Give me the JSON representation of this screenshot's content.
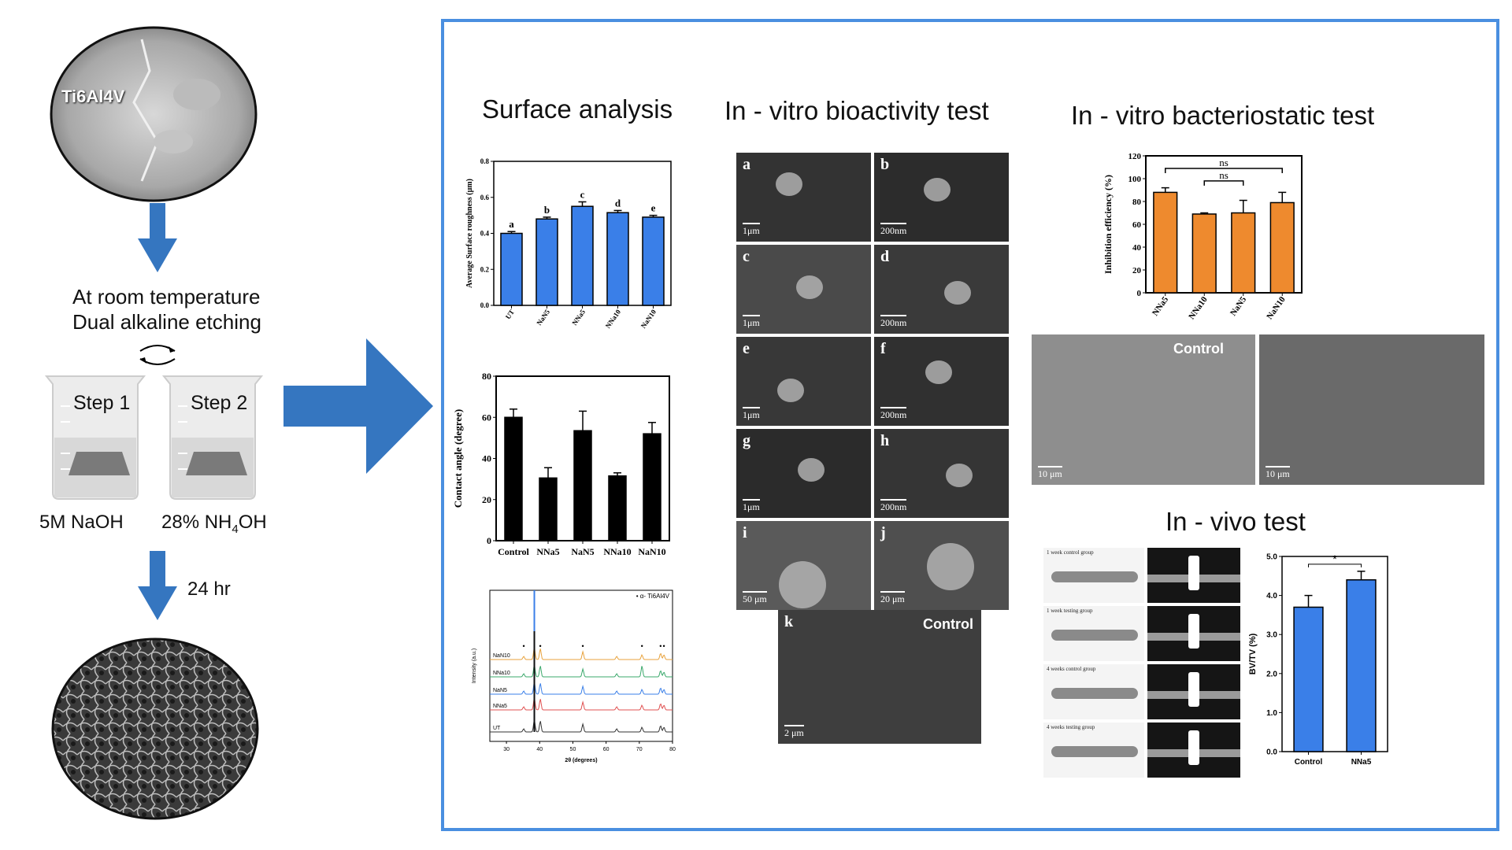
{
  "flow": {
    "substrate_label": "Ti6Al4V",
    "process_line1": "At room temperature",
    "process_line2": "Dual alkaline etching",
    "step1": "Step 1",
    "step2": "Step 2",
    "reagent1": "5M NaOH",
    "reagent2_prefix": "28% NH",
    "reagent2_sub": "4",
    "reagent2_suffix": "OH",
    "duration": "24 hr"
  },
  "sections": {
    "surface": "Surface analysis",
    "bioactivity": "In - vitro bioactivity test",
    "bacteriostatic": "In - vitro bacteriostatic  test",
    "invivo": "In - vivo test"
  },
  "sem_panels": {
    "labels": [
      "a",
      "b",
      "c",
      "d",
      "e",
      "f",
      "g",
      "h",
      "i",
      "j",
      "k"
    ],
    "scales": [
      "1μm",
      "200nm",
      "1μm",
      "200nm",
      "1μm",
      "200nm",
      "1μm",
      "200nm",
      "50 μm",
      "20 μm",
      "2 μm"
    ],
    "control_label": "Control",
    "bact_control_label": "Control",
    "bact_scale_left": "10 μm",
    "bact_scale_right": "10 μm"
  },
  "invivo_groups": [
    "1 week control group",
    "1 week testing group",
    "4 weeks control group",
    "4 weeks testing group"
  ],
  "chart_data": [
    {
      "type": "bar",
      "ylabel": "Average Surface roughness (μm)",
      "categories": [
        "UT",
        "NaN5",
        "NNa5",
        "NNa10",
        "NaN10"
      ],
      "values": [
        0.4,
        0.48,
        0.55,
        0.515,
        0.49
      ],
      "errors": [
        0.01,
        0.01,
        0.025,
        0.012,
        0.01
      ],
      "annotations": [
        "a",
        "b",
        "c",
        "d",
        "e"
      ],
      "ylim": [
        0,
        0.8
      ],
      "yticks": [
        "0.0",
        "0.2",
        "0.4",
        "0.6",
        "0.8"
      ],
      "color": "#3a7fe8"
    },
    {
      "type": "bar",
      "ylabel": "Contact angle (degree)",
      "categories": [
        "Control",
        "NNa5",
        "NaN5",
        "NNa10",
        "NaN10"
      ],
      "values": [
        60,
        30.5,
        53.5,
        31.5,
        52
      ],
      "errors": [
        4,
        5,
        9.5,
        1.5,
        5.5
      ],
      "ylim": [
        0,
        80
      ],
      "yticks": [
        "0",
        "20",
        "40",
        "60",
        "80"
      ],
      "color": "#000000"
    },
    {
      "type": "line",
      "xlabel": "2θ (degrees)",
      "ylabel": "Intensity (a.u.)",
      "legend": "α- Ti6Al4V",
      "series": [
        {
          "name": "NaN10",
          "color": "#e8a23c"
        },
        {
          "name": "NNa10",
          "color": "#3aa86b"
        },
        {
          "name": "NaN5",
          "color": "#3a7fe8"
        },
        {
          "name": "NNa5",
          "color": "#e05050"
        },
        {
          "name": "UT",
          "color": "#333333"
        }
      ],
      "peaks_2theta": [
        35.2,
        38.4,
        40.2,
        53.0,
        63.2,
        70.8,
        76.4,
        77.4
      ],
      "xlim": [
        25,
        80
      ],
      "xticks": [
        "30",
        "40",
        "50",
        "60",
        "70",
        "80"
      ]
    },
    {
      "type": "bar",
      "ylabel": "Inhibition efficiency (%)",
      "categories": [
        "NNa5",
        "NNa10",
        "NaN5",
        "NaN10"
      ],
      "values": [
        88,
        69,
        70,
        79
      ],
      "errors": [
        4,
        1,
        11,
        9
      ],
      "ylim": [
        0,
        120
      ],
      "yticks": [
        "0",
        "20",
        "40",
        "60",
        "80",
        "100",
        "120"
      ],
      "significance": [
        "ns",
        "ns"
      ],
      "color": "#ee8a2e"
    },
    {
      "type": "bar",
      "ylabel": "BV/TV (%)",
      "categories": [
        "Control",
        "NNa5"
      ],
      "values": [
        3.7,
        4.4
      ],
      "errors": [
        0.3,
        0.22
      ],
      "ylim": [
        0,
        5
      ],
      "yticks": [
        "0.0",
        "1.0",
        "2.0",
        "3.0",
        "4.0",
        "5.0"
      ],
      "significance": [
        "*"
      ],
      "color": "#3a7fe8"
    }
  ]
}
